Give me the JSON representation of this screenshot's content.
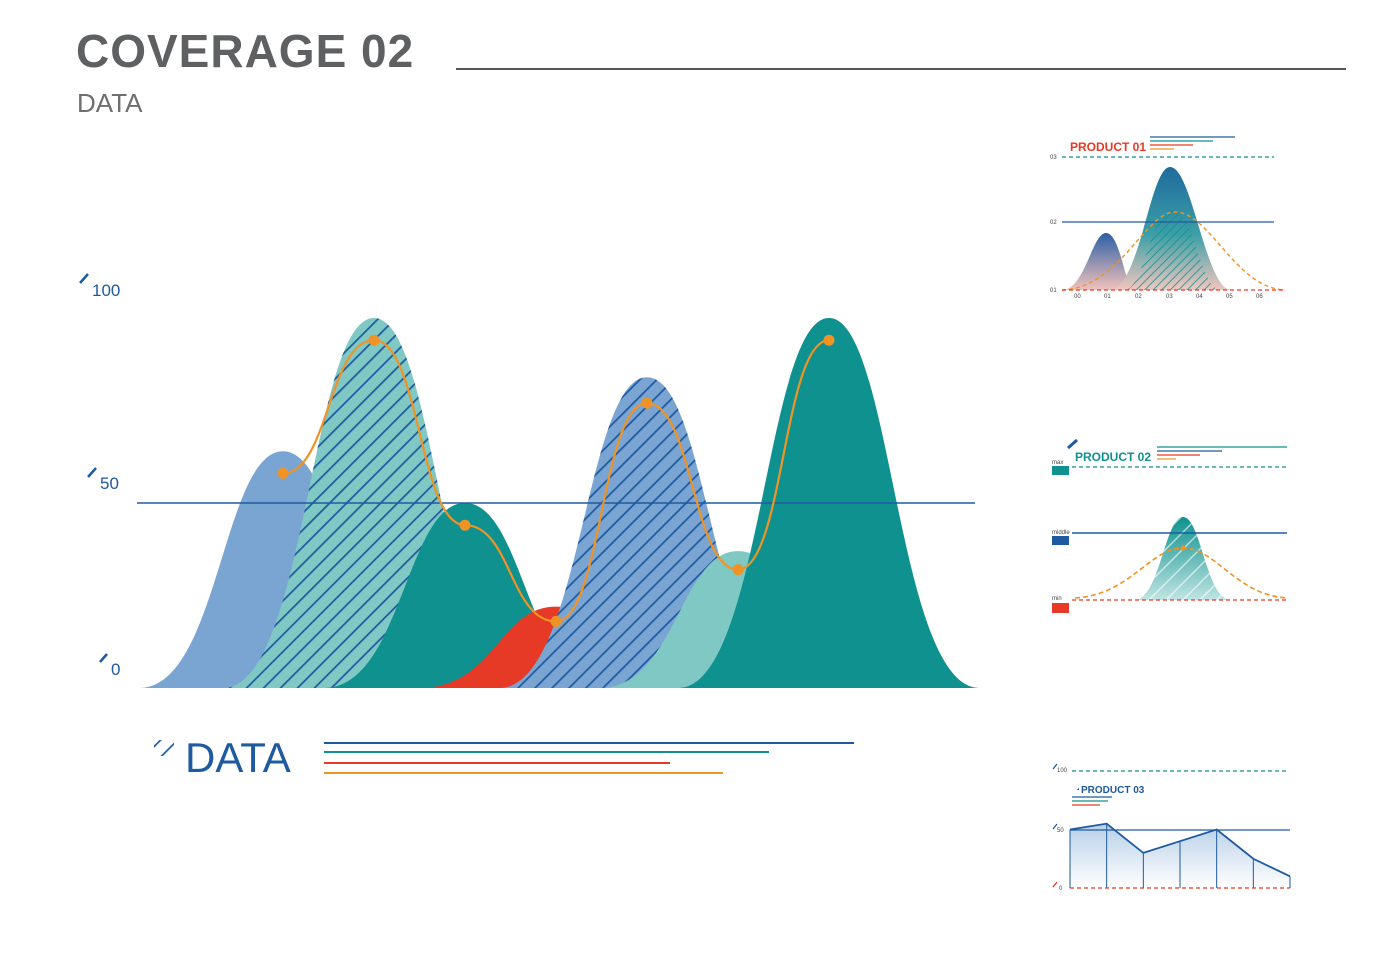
{
  "header": {
    "title": "COVERAGE 02",
    "subtitle": "DATA"
  },
  "colors": {
    "blue": "#1e5aa0",
    "light_blue": "#7aa5d3",
    "teal": "#0e918f",
    "light_teal": "#7fc8c3",
    "red": "#e63a26",
    "orange": "#f09325"
  },
  "chart_data": [
    {
      "type": "area",
      "name_label": "DATA",
      "y_ticks": [
        "100",
        "50",
        "0"
      ],
      "ylim": [
        0,
        100
      ],
      "reference_line": 50,
      "peaks": [
        {
          "center": 1,
          "height": 64,
          "color": "light_blue",
          "hatched": false
        },
        {
          "center": 2,
          "height": 100,
          "color": "light_teal",
          "hatched": true
        },
        {
          "center": 3,
          "height": 50,
          "color": "teal",
          "hatched": false
        },
        {
          "center": 4,
          "height": 22,
          "color": "red",
          "hatched": false
        },
        {
          "center": 5,
          "height": 84,
          "color": "light_blue",
          "hatched": true
        },
        {
          "center": 6,
          "height": 37,
          "color": "light_teal",
          "hatched": false
        },
        {
          "center": 7,
          "height": 100,
          "color": "teal",
          "hatched": false
        }
      ],
      "line": {
        "x": [
          1,
          2,
          3,
          4,
          5,
          6,
          7
        ],
        "y": [
          58,
          94,
          44,
          18,
          77,
          32,
          94
        ]
      }
    },
    {
      "type": "area",
      "title": "PRODUCT 01",
      "y_ticks": [
        "03",
        "02",
        "01"
      ],
      "x_ticks": [
        "00",
        "01",
        "02",
        "03",
        "04",
        "05",
        "06"
      ]
    },
    {
      "type": "area",
      "title": "PRODUCT 02",
      "levels": [
        "max",
        "middle",
        "min"
      ]
    },
    {
      "type": "line",
      "title": "PRODUCT 03",
      "y_ticks": [
        "100",
        "50",
        "0"
      ],
      "x": [
        0,
        1,
        2,
        3,
        4,
        5,
        6
      ],
      "y": [
        50,
        55,
        30,
        40,
        50,
        25,
        10
      ]
    }
  ]
}
